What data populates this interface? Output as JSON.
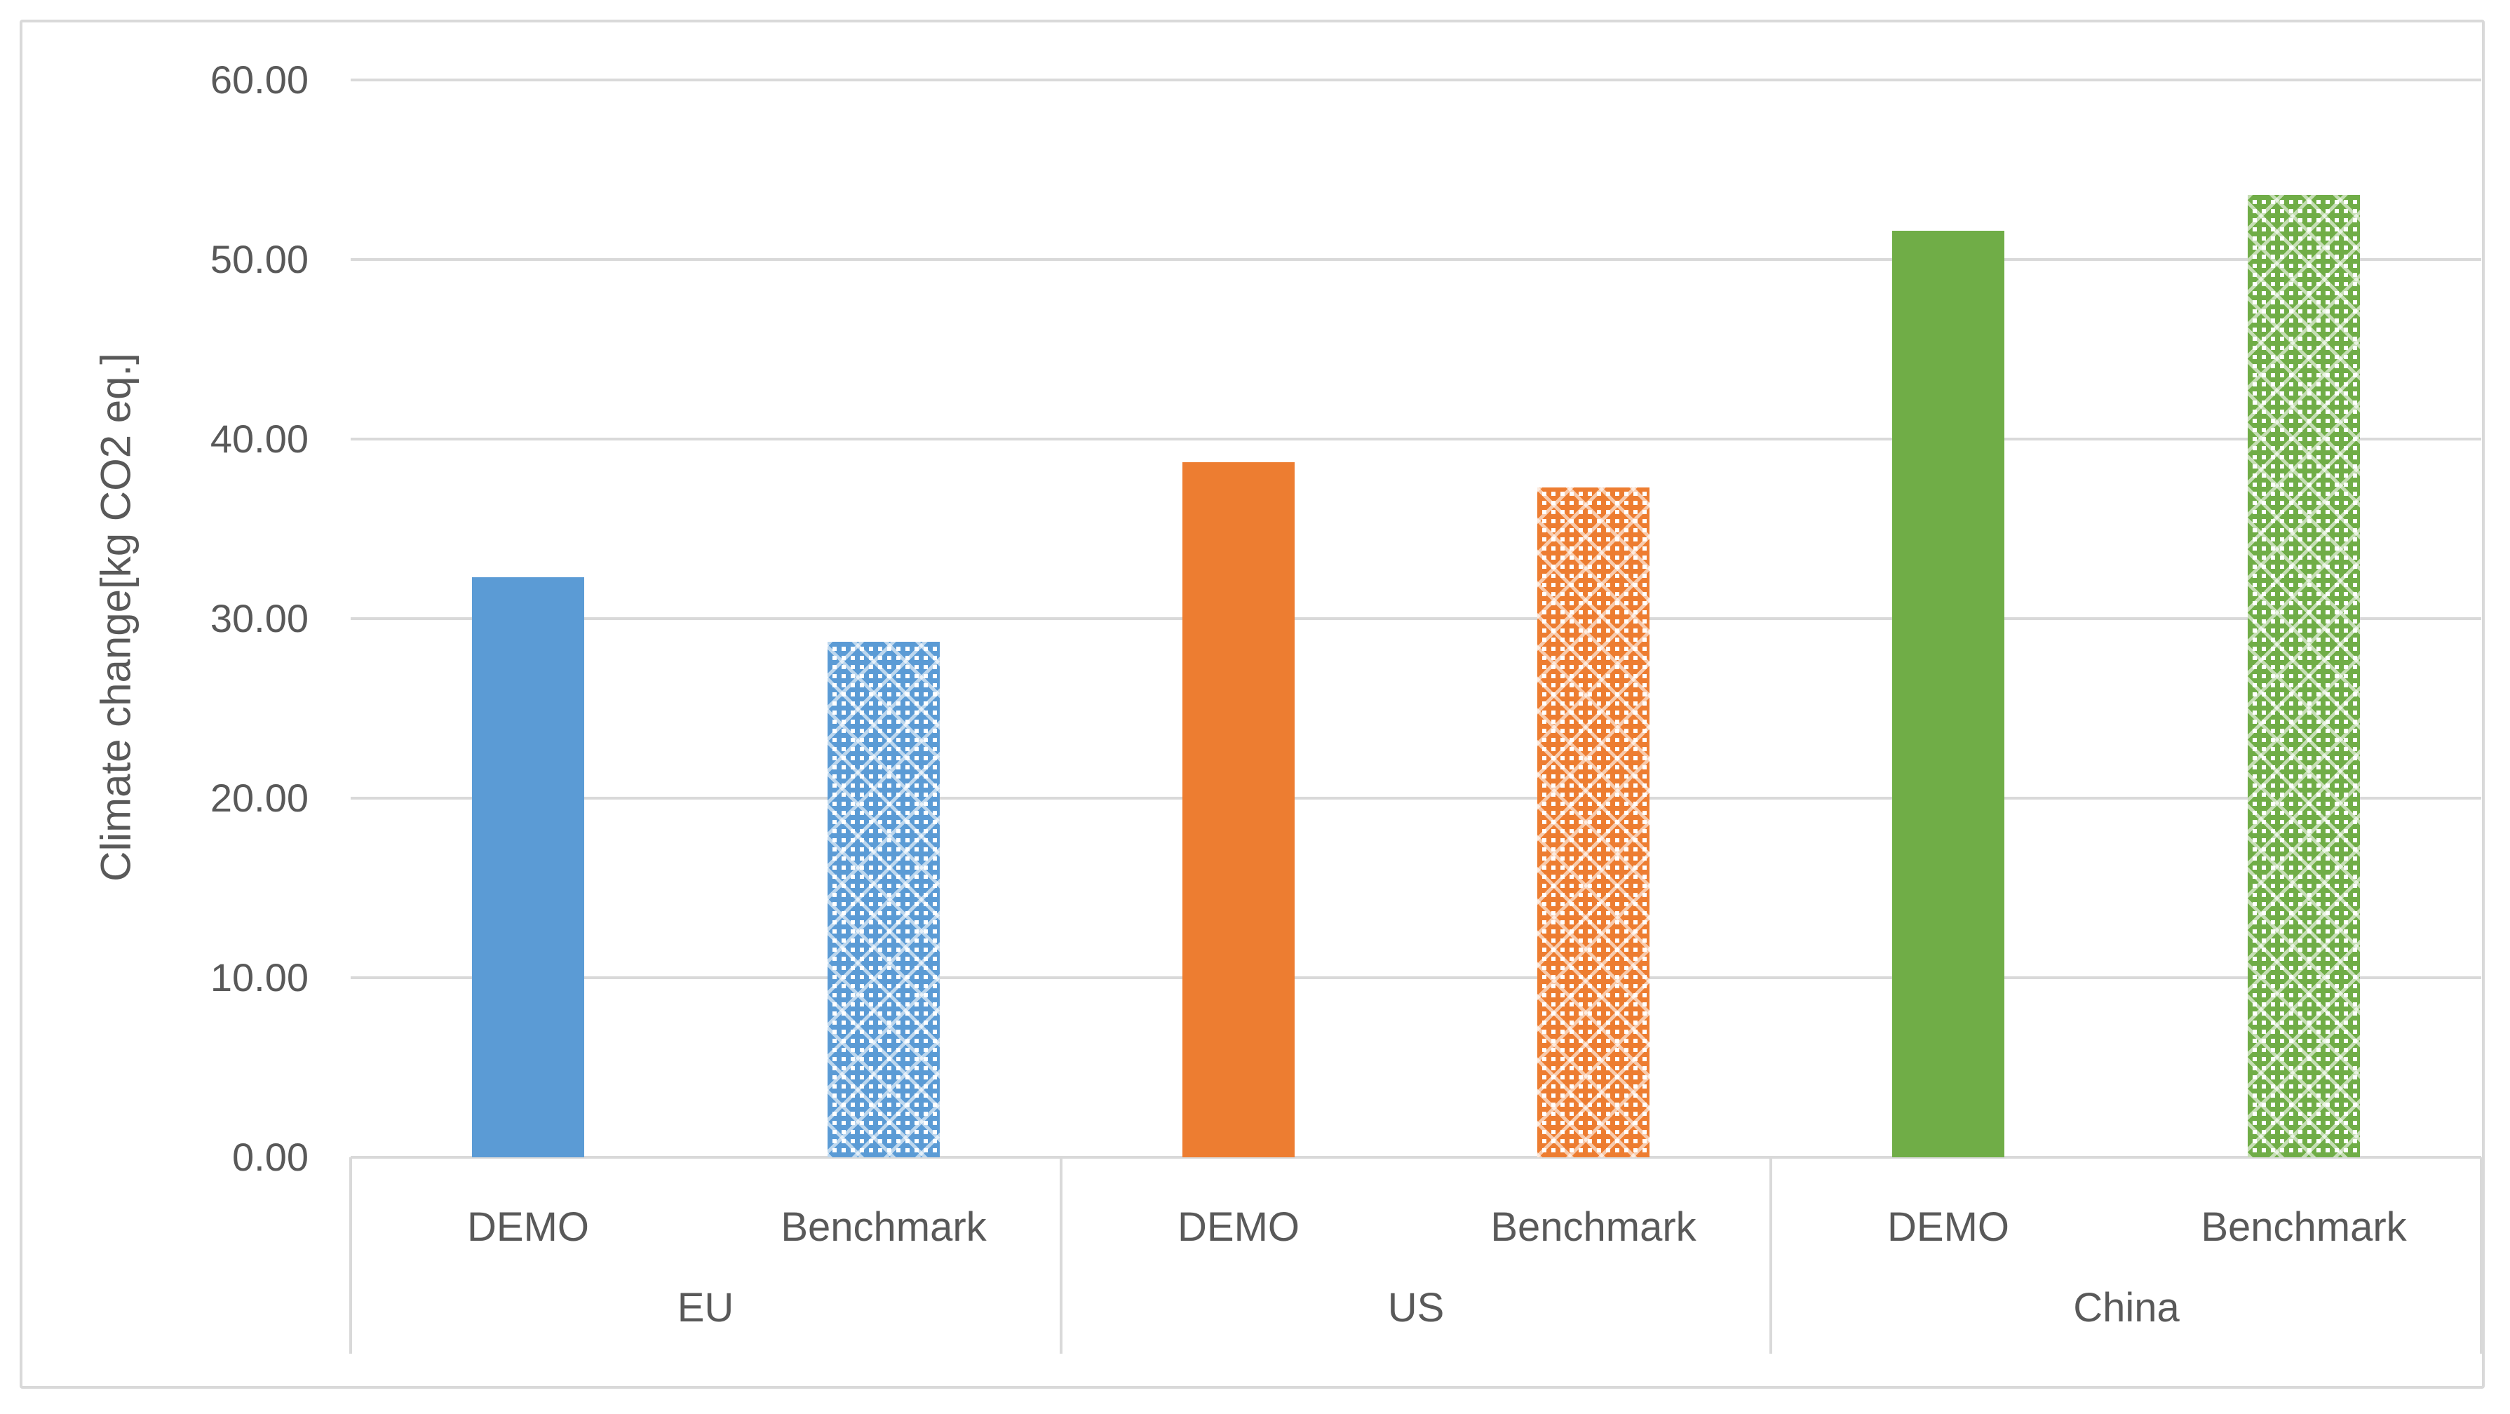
{
  "chart_data": {
    "type": "bar",
    "title": "",
    "xlabel": "",
    "ylabel": "Climate change[kg CO2 eq.]",
    "groups": [
      "EU",
      "US",
      "China"
    ],
    "categories_per_group": [
      "DEMO",
      "Benchmark"
    ],
    "y_axis": {
      "min": 0,
      "max": 60,
      "step": 10,
      "tick_labels": [
        "0.00",
        "10.00",
        "20.00",
        "30.00",
        "40.00",
        "50.00",
        "60.00"
      ]
    },
    "grid": true,
    "legend_position": "none",
    "points": [
      {
        "group": "EU",
        "category": "DEMO",
        "value": 32.3,
        "fill": "solid",
        "color": "#5B9BD5"
      },
      {
        "group": "EU",
        "category": "Benchmark",
        "value": 28.7,
        "fill": "dotted-lattice",
        "color": "#5B9BD5"
      },
      {
        "group": "US",
        "category": "DEMO",
        "value": 38.7,
        "fill": "solid",
        "color": "#ED7D31"
      },
      {
        "group": "US",
        "category": "Benchmark",
        "value": 37.3,
        "fill": "dotted-lattice",
        "color": "#ED7D31"
      },
      {
        "group": "China",
        "category": "DEMO",
        "value": 51.6,
        "fill": "solid",
        "color": "#70AD47"
      },
      {
        "group": "China",
        "category": "Benchmark",
        "value": 53.6,
        "fill": "dotted-lattice",
        "color": "#70AD47"
      }
    ],
    "colors": {
      "gridline": "#D9D9D9",
      "axis_text": "#595959",
      "chart_border": "#D9D9D9",
      "series_blue": "#5B9BD5",
      "series_orange": "#ED7D31",
      "series_green": "#70AD47"
    }
  }
}
